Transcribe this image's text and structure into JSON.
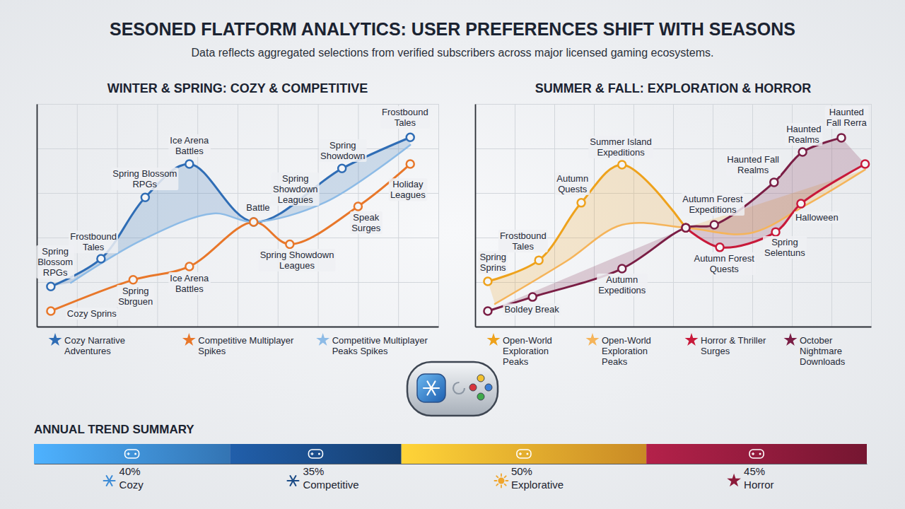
{
  "header": {
    "title": "SESONED FLATFORM ANALYTICS: USER PREFERENCES SHIFT WITH SEASONS",
    "subtitle": "Data reflects aggregated selections from verified subscribers across major licensed gaming ecosystems."
  },
  "chart_data": [
    {
      "type": "line",
      "title": "WINTER & SPRING: COZY & COMPETITIVE",
      "xlim": [
        0,
        10
      ],
      "ylim": [
        0,
        100
      ],
      "xticks": [
        0,
        1,
        2,
        3,
        4,
        5,
        6,
        7,
        8,
        9,
        10
      ],
      "yticks": [
        0,
        20,
        40,
        60,
        80,
        100
      ],
      "grid": true,
      "tick_labels": false,
      "legend": "bottom",
      "series": [
        {
          "name": "Cozy Narrative Adventures",
          "color": "#2f6db5",
          "marker": "circle",
          "line_style": "solid",
          "x": [
            0.35,
            1.6,
            2.7,
            3.8,
            5.4,
            7.6,
            9.3
          ],
          "values": [
            18,
            30.5,
            58,
            73,
            47,
            71,
            85
          ]
        },
        {
          "name": "Competitive Multiplayer Spikes",
          "color": "#e8772a",
          "marker": "circle",
          "line_style": "solid",
          "x": [
            0.35,
            2.4,
            3.8,
            5.4,
            6.3,
            8.0,
            9.3
          ],
          "values": [
            7,
            21,
            27,
            47,
            37,
            54,
            73
          ]
        },
        {
          "name": "Competitive Multiplayer Peaks Spikes",
          "color": "#8dbbe6",
          "marker": "none",
          "line_style": "solid",
          "x": [
            0.85,
            2.6,
            4.4,
            5.4,
            7.2,
            9.3
          ],
          "values": [
            19.7,
            38.7,
            50.8,
            47,
            56,
            81.6
          ]
        }
      ],
      "annotations": [
        {
          "text": [
            "Frostbound",
            "Tales"
          ],
          "x": 9.17,
          "y": 94.9
        },
        {
          "text": [
            "Ice Arena",
            "Battles"
          ],
          "x": 3.8,
          "y": 82.2
        },
        {
          "text": [
            "Spring Blossom",
            "RPGs"
          ],
          "x": 2.69,
          "y": 67.3
        },
        {
          "text": [
            "Frostbound",
            "Tales"
          ],
          "x": 1.41,
          "y": 39
        },
        {
          "text": [
            "Spring",
            "Blossom",
            "RPGs"
          ],
          "x": 0.46,
          "y": 32.4
        },
        {
          "text": [
            "Spring",
            "Sbrguen"
          ],
          "x": 2.46,
          "y": 14.6
        },
        {
          "text": [
            "Cozy Sprins"
          ],
          "x": 1.37,
          "y": 4.4
        },
        {
          "text": [
            "Ice Arena",
            "Battles"
          ],
          "x": 3.8,
          "y": 20.3
        },
        {
          "text": [
            "Battle"
          ],
          "x": 5.51,
          "y": 52.1
        },
        {
          "text": [
            "Spring",
            "Showdown",
            "Leagues"
          ],
          "x": 6.44,
          "y": 65.1
        },
        {
          "text": [
            "Spring",
            "Showdown"
          ],
          "x": 7.62,
          "y": 80
        },
        {
          "text": [
            "Holiday",
            "Leagues"
          ],
          "x": 9.24,
          "y": 62.5
        },
        {
          "text": [
            "Speak",
            "Surges"
          ],
          "x": 8.2,
          "y": 47.6
        },
        {
          "text": [
            "Spring Showdown",
            "Leagues"
          ],
          "x": 6.48,
          "y": 30.8
        }
      ]
    },
    {
      "type": "line",
      "title": "SUMMER & FALL: EXPLORATION & HORROR",
      "xlim": [
        0,
        10
      ],
      "ylim": [
        0,
        100
      ],
      "xticks": [
        0,
        1,
        2,
        3,
        4,
        5,
        6,
        7,
        8,
        9,
        10
      ],
      "yticks": [
        0,
        20,
        40,
        60,
        80,
        100
      ],
      "grid": true,
      "tick_labels": false,
      "legend": "bottom",
      "series": [
        {
          "name": "Open-World Exploration Peaks",
          "color": "#eea21c",
          "marker": "circle",
          "line_style": "solid",
          "x": [
            0.32,
            1.61,
            2.68,
            3.71,
            5.32
          ],
          "values": [
            20.3,
            29.8,
            55.6,
            72.7,
            44.4
          ]
        },
        {
          "name": "Open-World Exploration Peaks",
          "color": "#f5b45a",
          "marker": "none",
          "line_style": "solid",
          "x": [
            0.5,
            2.29,
            3.71,
            5.32,
            6.93,
            8.36,
            9.85
          ],
          "values": [
            10.2,
            29.2,
            45.7,
            44.4,
            41.9,
            54.6,
            70.5
          ]
        },
        {
          "name": "Horror & Thriller Surges",
          "color": "#c8193a",
          "marker": "circle",
          "line_style": "solid",
          "x": [
            5.32,
            6.18,
            7.59,
            8.23,
            9.85
          ],
          "values": [
            44.4,
            35.6,
            42.5,
            55.2,
            73
          ]
        },
        {
          "name": "October Nightmare Downloads",
          "color": "#7a1e45",
          "marker": "circle",
          "line_style": "solid",
          "x": [
            0.32,
            1.45,
            3.71,
            5.32,
            6.04,
            7.55,
            8.27,
            9.25
          ],
          "values": [
            7,
            13.3,
            26,
            44.4,
            45.7,
            64.8,
            78.4,
            84.8
          ]
        }
      ],
      "annotations": [
        {
          "text": [
            "Haunted",
            "Fall Rerra"
          ],
          "x": 9.38,
          "y": 94.9
        },
        {
          "text": [
            "Haunted",
            "Realms"
          ],
          "x": 8.3,
          "y": 87.3
        },
        {
          "text": [
            "Summer Island",
            "Expeditions"
          ],
          "x": 3.68,
          "y": 81.6
        },
        {
          "text": [
            "Autumn",
            "Quests"
          ],
          "x": 2.46,
          "y": 65.1
        },
        {
          "text": [
            "Haunted Fall",
            "Realms"
          ],
          "x": 7.02,
          "y": 73.7
        },
        {
          "text": [
            "Autumn Forest",
            "Expeditions"
          ],
          "x": 6.0,
          "y": 55.9
        },
        {
          "text": [
            "Frostbound",
            "Tales"
          ],
          "x": 1.21,
          "y": 39.4
        },
        {
          "text": [
            "Spring",
            "Sprins"
          ],
          "x": 0.45,
          "y": 29.8
        },
        {
          "text": [
            "Halloween"
          ],
          "x": 8.63,
          "y": 47.6
        },
        {
          "text": [
            "Autumn Forest",
            "Quests"
          ],
          "x": 6.29,
          "y": 29.2
        },
        {
          "text": [
            "Spring",
            "Selentuns"
          ],
          "x": 7.82,
          "y": 36.5
        },
        {
          "text": [
            "Autumn",
            "Expeditions"
          ],
          "x": 3.71,
          "y": 19.7
        },
        {
          "text": [
            "Boldey Break"
          ],
          "x": 1.43,
          "y": 6.3
        }
      ]
    },
    {
      "type": "bar",
      "orientation": "horizontal",
      "stacked": true,
      "title": "ANNUAL TREND SUMMARY",
      "categories": [
        "Cozy",
        "Competitive",
        "Explorative",
        "Horror"
      ],
      "values": [
        40,
        35,
        50,
        45
      ],
      "value_labels": [
        "40%",
        "35%",
        "50%",
        "45%"
      ],
      "colors": [
        "#3d8bd6",
        "#1a4a85",
        "#f0a52c",
        "#8c1a3a"
      ],
      "xlim": [
        0,
        170
      ],
      "tick_labels": false,
      "data_labels": true
    }
  ]
}
